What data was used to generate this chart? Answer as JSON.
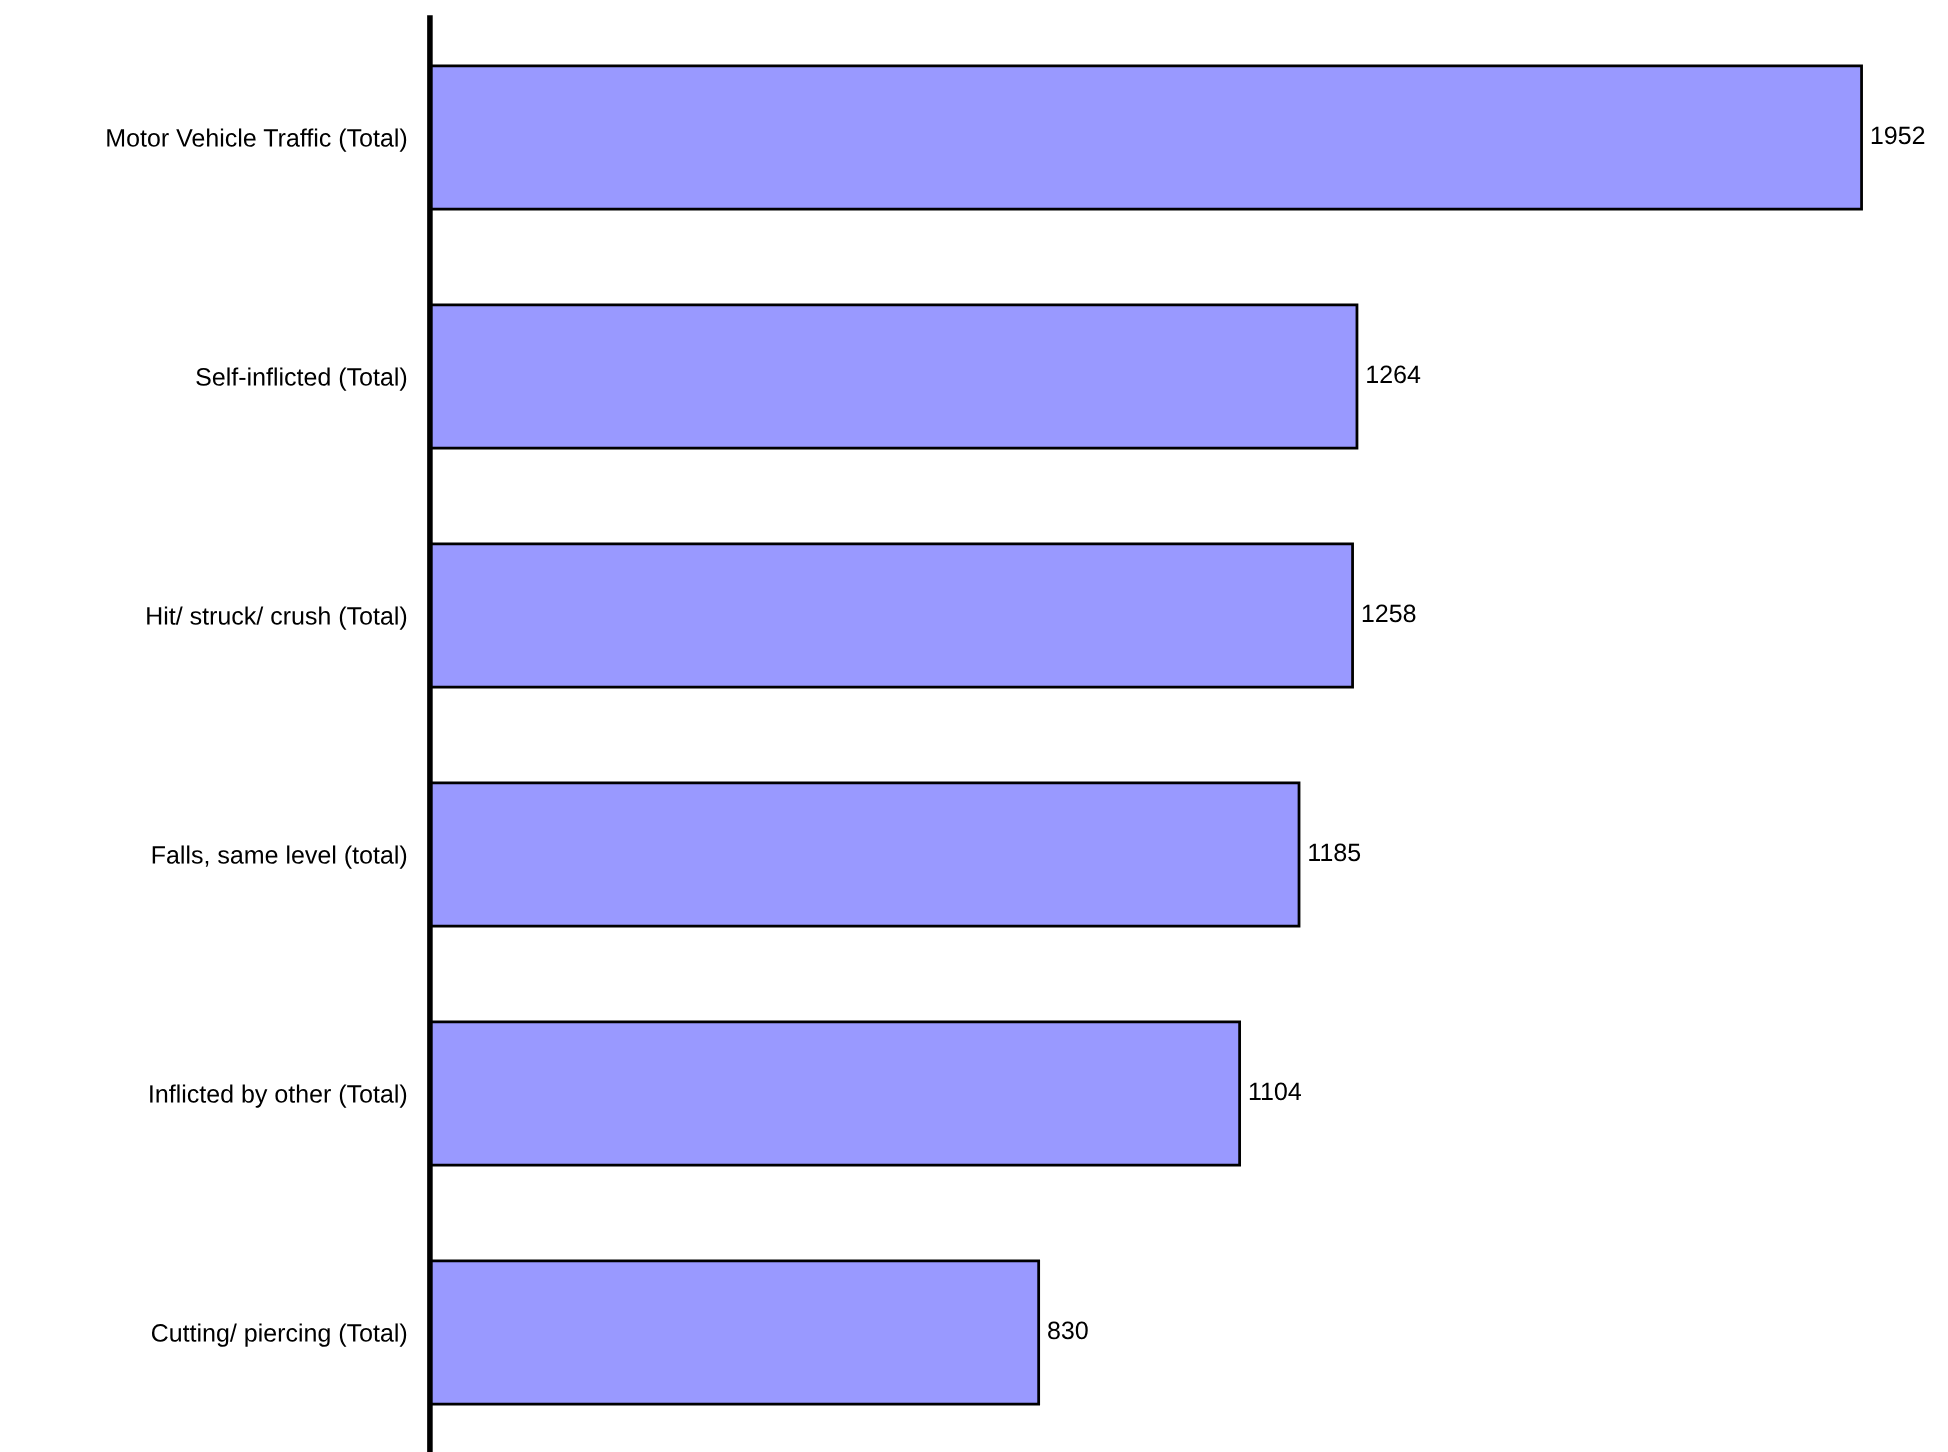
{
  "chart_data": {
    "type": "bar",
    "orientation": "horizontal",
    "categories": [
      "Motor Vehicle Traffic (Total)",
      "Self-inflicted (Total)",
      "Hit/ struck/ crush (Total)",
      "Falls, same level (total)",
      "Inflicted by other (Total)",
      "Cutting/ piercing (Total)"
    ],
    "values": [
      1952,
      1264,
      1258,
      1185,
      1104,
      830
    ],
    "color": "#9999ff",
    "data_labels": true,
    "tick_labels": "y",
    "grid": false,
    "legend": false
  }
}
